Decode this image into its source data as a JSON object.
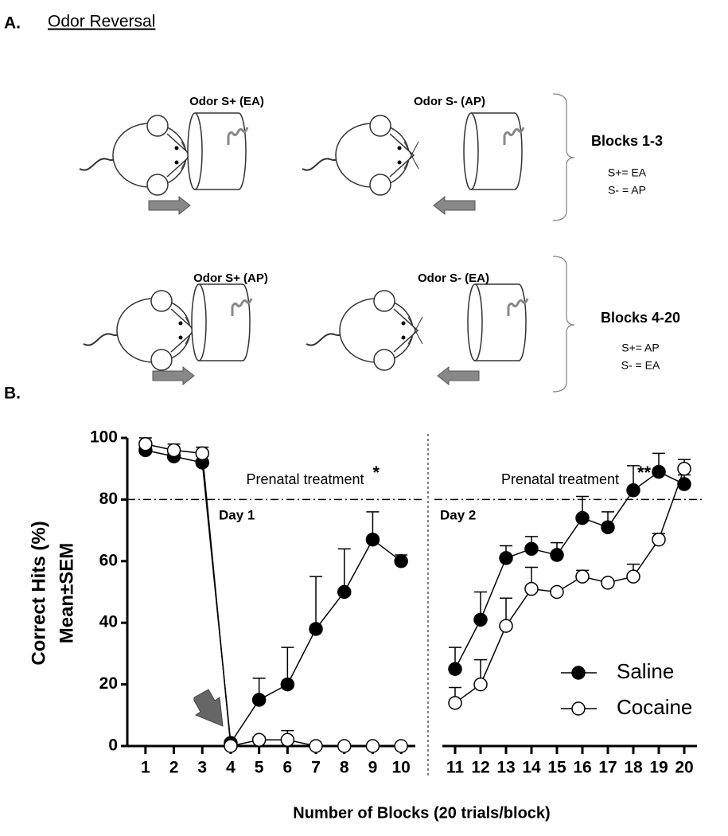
{
  "panel_a": {
    "label": "A.",
    "title": "Odor Reversal",
    "rows": [
      {
        "s_plus": "Odor S+ (EA)",
        "s_minus": "Odor S- (AP)",
        "blocks": "Blocks 1-3",
        "rule_plus": "S+= EA",
        "rule_minus": "S- = AP"
      },
      {
        "s_plus": "Odor S+ (AP)",
        "s_minus": "Odor S- (EA)",
        "blocks": "Blocks 4-20",
        "rule_plus": "S+= AP",
        "rule_minus": "S- = EA"
      }
    ]
  },
  "panel_b_label": "B.",
  "chart_data": {
    "type": "line",
    "y_label": [
      "Correct Hits (%)",
      "Mean±SEM"
    ],
    "x_label": "Number of Blocks (20 trials/block)",
    "x": [
      1,
      2,
      3,
      4,
      5,
      6,
      7,
      8,
      9,
      10,
      11,
      12,
      13,
      14,
      15,
      16,
      17,
      18,
      19,
      20
    ],
    "panels": [
      {
        "xlim": [
          0.5,
          10.5
        ],
        "annotation": "Prenatal treatment",
        "significance": "*",
        "day": "Day 1"
      },
      {
        "xlim": [
          10.5,
          20.5
        ],
        "annotation": "Prenatal treatment",
        "significance": "**",
        "day": "Day 2"
      }
    ],
    "ylim": [
      0,
      100
    ],
    "yticks": [
      0,
      20,
      40,
      60,
      80,
      100
    ],
    "reference_line": 80,
    "overlap_color": "#999999",
    "legend": "lower right",
    "series": [
      {
        "name": "Saline",
        "color": "#000000",
        "values": [
          96,
          94,
          92,
          1,
          15,
          20,
          38,
          50,
          67,
          60,
          25,
          41,
          61,
          64,
          62,
          74,
          71,
          83,
          89,
          85
        ],
        "errors": [
          1,
          2,
          2,
          0,
          7,
          12,
          17,
          14,
          9,
          2,
          7,
          9,
          4,
          4,
          4,
          7,
          5,
          8,
          6,
          3
        ]
      },
      {
        "name": "Cocaine",
        "color": "#ffffff",
        "values": [
          98,
          96,
          95,
          0,
          2,
          2,
          0,
          0,
          0,
          0,
          14,
          20,
          39,
          51,
          50,
          55,
          53,
          55,
          67,
          90
        ],
        "errors": [
          2,
          2,
          2,
          0,
          1,
          3,
          0,
          0,
          0,
          0,
          5,
          8,
          9,
          7,
          1,
          2,
          1,
          4,
          2,
          3
        ]
      }
    ]
  }
}
